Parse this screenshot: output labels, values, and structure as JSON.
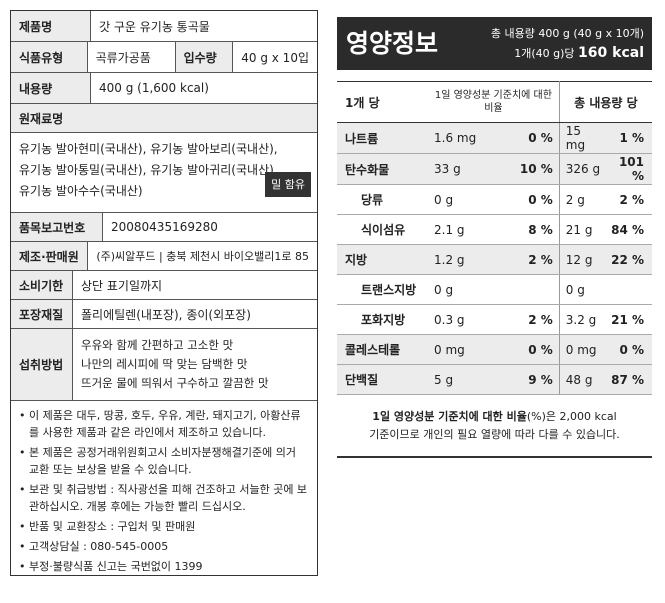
{
  "left": {
    "product_name_label": "제품명",
    "product_name": "갓 구운 유기농 통곡물",
    "type_label": "식품유형",
    "type": "곡류가공품",
    "count_label": "입수량",
    "count": "40 g x 10입",
    "volume_label": "내용량",
    "volume": "400 g (1,600 kcal)",
    "ingredients_label": "원재료명",
    "ingredients": [
      "유기농 발아현미(국내산), 유기농 발아보리(국내산),",
      "유기농 발아통밀(국내산), 유기농 발아귀리(국내산),",
      "유기농 발아수수(국내산)"
    ],
    "allergen_badge": "밀 함유",
    "report_no_label": "품목보고번호",
    "report_no": "20080435169280",
    "maker_label": "제조·판매원",
    "maker": "(주)씨알푸드 | 충북 제천시 바이오밸리1로 85",
    "expiry_label": "소비기한",
    "expiry": "상단 표기일까지",
    "packaging_label": "포장재질",
    "packaging": "폴리에틸렌(내포장), 종이(외포장)",
    "howto_label": "섭취방법",
    "howto": [
      "우유와 함께 간편하고 고소한 맛",
      "나만의 레시피에 딱 맞는 담백한 맛",
      "뜨거운 물에 띄워서 구수하고 깔끔한 맛"
    ],
    "notes": [
      "이 제품은 대두, 땅콩, 호두, 우유, 계란, 돼지고기, 아황산류를 사용한 제품과 같은 라인에서 제조하고 있습니다.",
      "본 제품은 공정거래위원회고시 소비자분쟁해결기준에 의거 교환 또는 보상을 받을 수 있습니다.",
      "보관 및 취급방법 : 직사광선을 피해 건조하고 서늘한 곳에 보관하십시오. 개봉 후에는 가능한 빨리 드십시오.",
      "반품 및 교환장소 : 구입처 및 판매원",
      "고객상담실 : 080-545-0005",
      "부정·불량식품 신고는 국번없이 1399"
    ]
  },
  "nutrition": {
    "title": "영양정보",
    "total_line": "총 내용량 400 g (40 g x 10개)",
    "per_serving_prefix": "1개(40 g)당",
    "per_serving_kcal": "160 kcal",
    "col_per": "1개 당",
    "col_dv": "1일 영양성분 기준치에 대한 비율",
    "col_total": "총 내용량 당",
    "rows": [
      {
        "name": "나트륨",
        "v1": "1.6 mg",
        "p1": "0 %",
        "v2": "15 mg",
        "p2": "1 %",
        "sub": false
      },
      {
        "name": "탄수화물",
        "v1": "33 g",
        "p1": "10 %",
        "v2": "326 g",
        "p2": "101 %",
        "sub": false
      },
      {
        "name": "당류",
        "v1": "0 g",
        "p1": "0 %",
        "v2": "2 g",
        "p2": "2 %",
        "sub": true
      },
      {
        "name": "식이섬유",
        "v1": "2.1 g",
        "p1": "8 %",
        "v2": "21 g",
        "p2": "84 %",
        "sub": true
      },
      {
        "name": "지방",
        "v1": "1.2 g",
        "p1": "2 %",
        "v2": "12 g",
        "p2": "22 %",
        "sub": false
      },
      {
        "name": "트랜스지방",
        "v1": "0 g",
        "p1": "",
        "v2": "0 g",
        "p2": "",
        "sub": true
      },
      {
        "name": "포화지방",
        "v1": "0.3 g",
        "p1": "2 %",
        "v2": "3.2 g",
        "p2": "21 %",
        "sub": true
      },
      {
        "name": "콜레스테롤",
        "v1": "0 mg",
        "p1": "0 %",
        "v2": "0 mg",
        "p2": "0 %",
        "sub": false
      },
      {
        "name": "단백질",
        "v1": "5 g",
        "p1": "9 %",
        "v2": "48 g",
        "p2": "87 %",
        "sub": false
      }
    ],
    "foot1_bold": "1일 영양성분 기준치에 대한 비율",
    "foot1_rest": "(%)은 2,000 kcal",
    "foot2": "기준이므로 개인의 필요 열량에 따라 다를 수 있습니다."
  }
}
